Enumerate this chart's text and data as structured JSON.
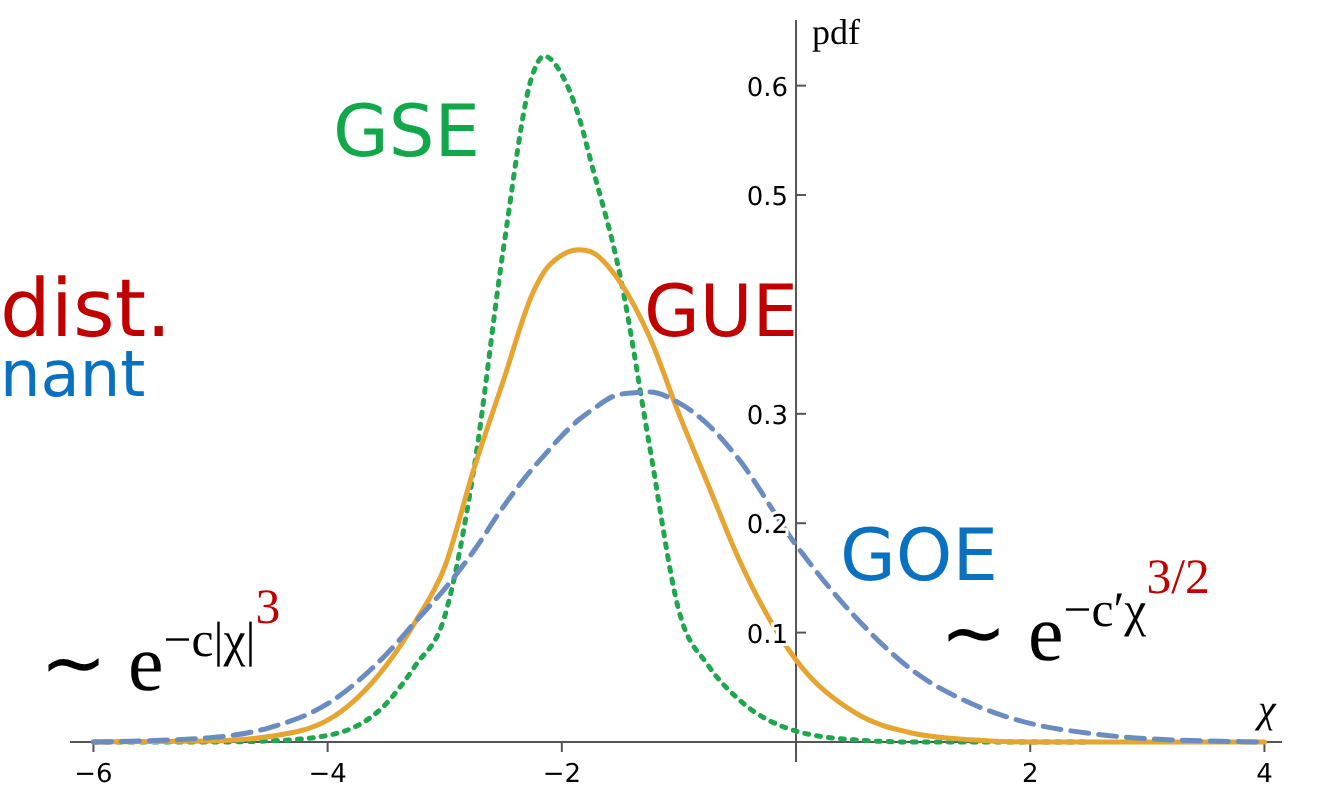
{
  "chart_data": {
    "type": "line",
    "xlabel": "χ",
    "ylabel": "pdf",
    "xlim": [
      -6.2,
      4.15
    ],
    "ylim": [
      0,
      0.66
    ],
    "xticks": [
      -6,
      -4,
      -2,
      {
        "value": 0,
        "label": null
      },
      2,
      4
    ],
    "yticks": [
      0.1,
      0.2,
      0.3,
      0.5,
      0.6
    ],
    "x": [
      -6,
      -5,
      -4.5,
      -4,
      -3.5,
      -3.25,
      -3,
      -2.75,
      -2.5,
      -2.25,
      -2.15,
      -2,
      -1.85,
      -1.75,
      -1.5,
      -1.25,
      -1,
      -0.75,
      -0.5,
      0,
      0.5,
      1,
      1.5,
      2,
      2.5,
      3,
      4
    ],
    "series": [
      {
        "name": "GSE",
        "color": "#1fa64f",
        "line_style": "dotted",
        "values": [
          0,
          0,
          0.001,
          0.006,
          0.035,
          0.07,
          0.115,
          0.25,
          0.45,
          0.61,
          0.627,
          0.61,
          0.57,
          0.53,
          0.425,
          0.27,
          0.12,
          0.07,
          0.04,
          0.01,
          0.002,
          0,
          0,
          0,
          0,
          null,
          null
        ]
      },
      {
        "name": "GUE",
        "color": "#e6a532",
        "line_style": "solid",
        "values": [
          0,
          0.001,
          0.005,
          0.02,
          0.07,
          0.11,
          0.16,
          0.25,
          0.33,
          0.41,
          0.43,
          0.445,
          0.45,
          0.448,
          0.42,
          0.37,
          0.3,
          0.235,
          0.17,
          0.075,
          0.027,
          0.008,
          0.002,
          0,
          0,
          0,
          0
        ]
      },
      {
        "name": "GOE",
        "color": "#6a8cc0",
        "line_style": "dashed",
        "values": [
          0,
          0.004,
          0.013,
          0.035,
          0.08,
          0.11,
          0.14,
          0.175,
          0.215,
          0.25,
          0.262,
          0.28,
          0.295,
          0.303,
          0.318,
          0.32,
          0.31,
          0.29,
          0.26,
          0.18,
          0.115,
          0.065,
          0.035,
          0.017,
          0.008,
          0.003,
          0
        ]
      }
    ],
    "annotations": [
      "dist.",
      "nant",
      "∼ e$^{−c|χ|}$$^{3}$",
      "∼ e$^{−c′χ}$$^{3/2}$"
    ]
  }
}
